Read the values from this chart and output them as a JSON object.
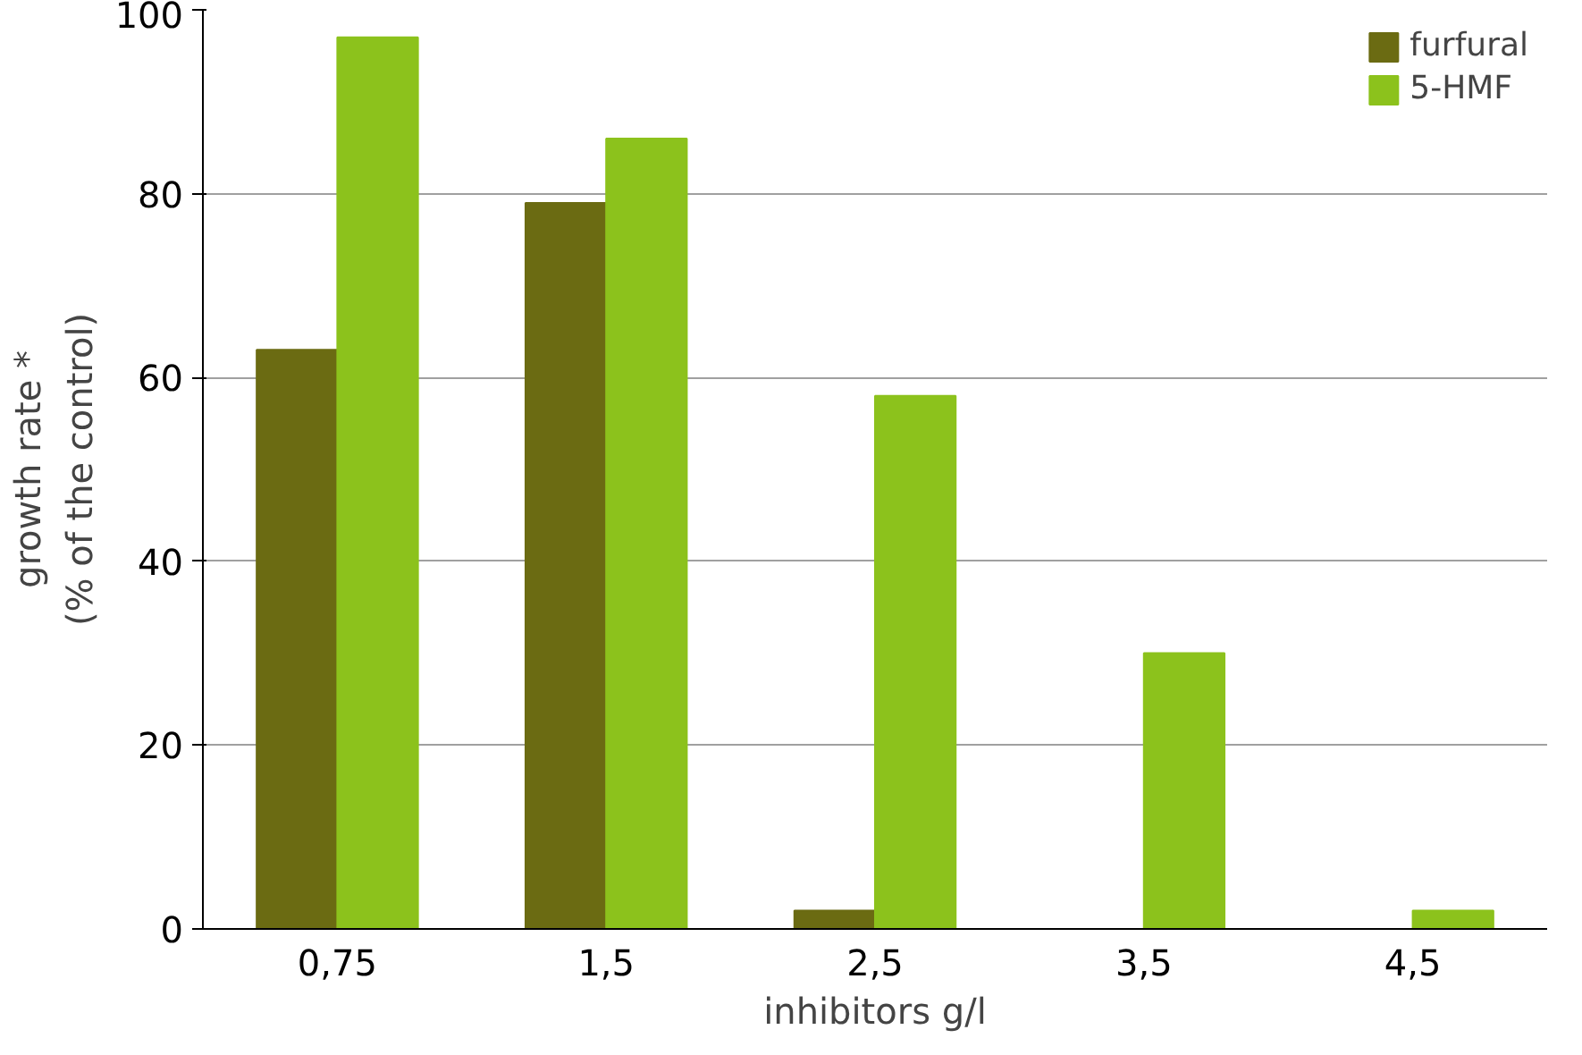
{
  "chart_data": {
    "type": "bar",
    "xlabel": "inhibitors g/l",
    "ylabel": "growth rate *\n(% of the control)",
    "categories": [
      "0,75",
      "1,5",
      "2,5",
      "3,5",
      "4,5"
    ],
    "series": [
      {
        "name": "furfural",
        "color": "#6b6b12",
        "values": [
          63,
          79,
          2,
          0,
          0
        ]
      },
      {
        "name": "5-HMF",
        "color": "#8cc21c",
        "values": [
          97,
          86,
          58,
          30,
          2
        ]
      }
    ],
    "ylim": [
      0,
      100
    ],
    "yticks": [
      0,
      20,
      40,
      60,
      80,
      100
    ],
    "grid": "y",
    "legend": "top right"
  }
}
